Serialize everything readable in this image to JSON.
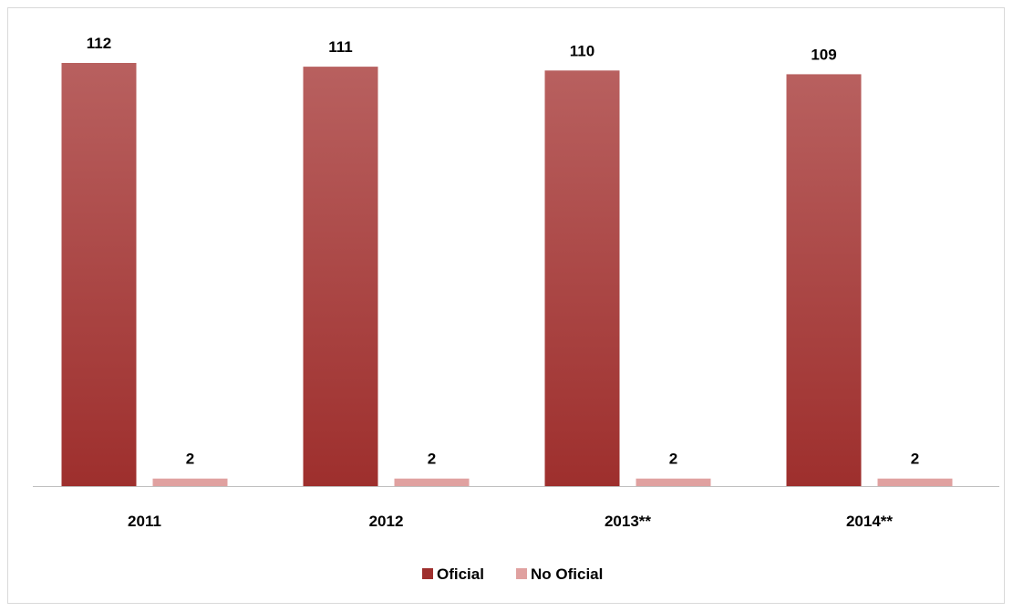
{
  "chart_data": {
    "type": "bar",
    "categories": [
      "2011",
      "2012",
      "2013**",
      "2014**"
    ],
    "series": [
      {
        "name": "Oficial",
        "values": [
          112,
          111,
          110,
          109
        ]
      },
      {
        "name": "No Oficial",
        "values": [
          2,
          2,
          2,
          2
        ]
      }
    ],
    "data_labels": true,
    "grid": false,
    "legend_position": "bottom",
    "ylim": [
      0,
      120
    ]
  },
  "colors": {
    "oficial_top": "#b8605f",
    "oficial_bottom": "#9e2f2d",
    "no_oficial": "#e0a1a0",
    "axis": "#bfbfbf",
    "frame": "#d9d9d9"
  }
}
